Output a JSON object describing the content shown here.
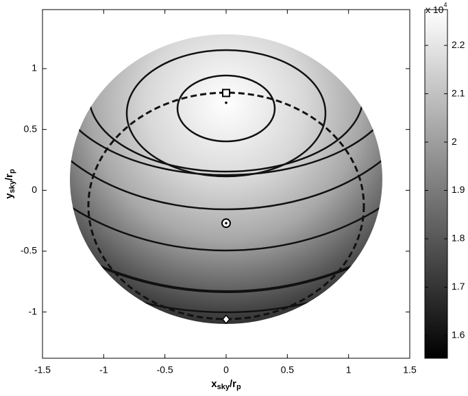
{
  "chart_data": {
    "type": "image",
    "xlabel": {
      "main": "x",
      "sub": "sky",
      "main2": "/r",
      "sub2": "p"
    },
    "ylabel": {
      "main": "y",
      "sub": "sky",
      "main2": "/r",
      "sub2": "p"
    },
    "xlim": [
      -1.5,
      1.5
    ],
    "xticks": [
      -1.5,
      -1,
      -0.5,
      0,
      0.5,
      1,
      1.5
    ],
    "ylim": [
      -1.38,
      1.485
    ],
    "yticks": [
      -1,
      -0.5,
      0,
      0.5,
      1
    ],
    "colorbar": {
      "clim": [
        1.553,
        2.274
      ],
      "ticks": [
        1.6,
        1.7,
        1.8,
        1.9,
        2,
        2.1,
        2.2
      ],
      "multiplier": {
        "base": "x 10",
        "exponent": "4"
      }
    },
    "markers": [
      {
        "shape": "square",
        "x": 0,
        "y": 0.8
      },
      {
        "shape": "dot",
        "x": 0,
        "y": 0.72
      },
      {
        "shape": "circle",
        "x": 0,
        "y": -0.27
      },
      {
        "shape": "diamond",
        "x": 0,
        "y": -1.06
      }
    ]
  }
}
